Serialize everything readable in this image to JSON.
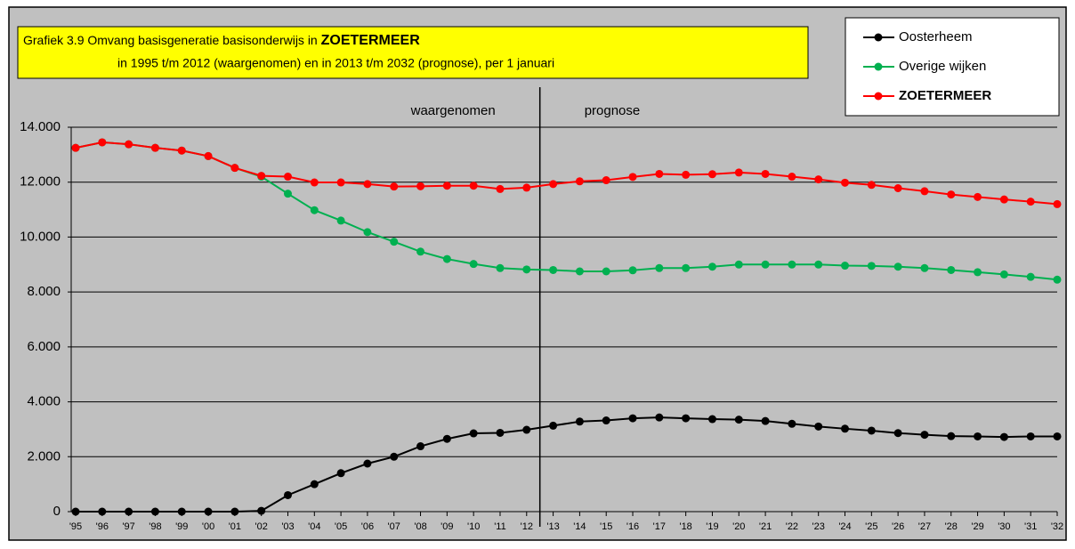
{
  "chart_data": {
    "type": "line",
    "title": "Grafiek 3.9  Omvang basisgeneratie basisonderwijs in",
    "title_emphasis": "ZOETERMEER",
    "subtitle": "in 1995 t/m 2012 (waargenomen) en in 2013 t/m 2032 (prognose), per 1 januari",
    "annotations": [
      "waargenomen",
      "prognose"
    ],
    "categories": [
      "'95",
      "'96",
      "'97",
      "'98",
      "'99",
      "'00",
      "'01",
      "'02",
      "'03",
      "'04",
      "'05",
      "'06",
      "'07",
      "'08",
      "'09",
      "'10",
      "'11",
      "'12",
      "'13",
      "'14",
      "'15",
      "'16",
      "'17",
      "'18",
      "'19",
      "'20",
      "'21",
      "'22",
      "'23",
      "'24",
      "'25",
      "'26",
      "'27",
      "'28",
      "'29",
      "'30",
      "'31",
      "'32"
    ],
    "series": [
      {
        "name": "Oosterheem",
        "color": "#000000",
        "values": [
          0,
          0,
          0,
          0,
          0,
          0,
          0,
          30,
          600,
          1000,
          1400,
          1750,
          2000,
          2380,
          2650,
          2850,
          2870,
          2980,
          3130,
          3280,
          3320,
          3400,
          3430,
          3400,
          3370,
          3350,
          3300,
          3200,
          3100,
          3020,
          2950,
          2860,
          2800,
          2750,
          2740,
          2720,
          2740,
          2740
        ]
      },
      {
        "name": "Overige wijken",
        "color": "#00b050",
        "values": [
          13250,
          13450,
          13380,
          13250,
          13150,
          12950,
          12520,
          12200,
          11580,
          10980,
          10600,
          10180,
          9830,
          9470,
          9200,
          9020,
          8870,
          8820,
          8800,
          8750,
          8750,
          8790,
          8870,
          8870,
          8920,
          9000,
          9000,
          9000,
          9000,
          8960,
          8950,
          8920,
          8870,
          8800,
          8720,
          8640,
          8550,
          8450
        ]
      },
      {
        "name": "ZOETERMEER",
        "color": "#ff0000",
        "values": [
          13250,
          13450,
          13380,
          13250,
          13150,
          12950,
          12520,
          12230,
          12200,
          11990,
          11990,
          11930,
          11840,
          11850,
          11870,
          11870,
          11750,
          11800,
          11930,
          12030,
          12070,
          12190,
          12300,
          12270,
          12290,
          12350,
          12300,
          12200,
          12100,
          11980,
          11900,
          11780,
          11670,
          11550,
          11460,
          11370,
          11290,
          11200
        ]
      }
    ],
    "ylim": [
      0,
      14000
    ],
    "yticks": [
      0,
      {
        "value": 2000,
        "label": "2.000"
      },
      {
        "value": 4000,
        "label": "4.000"
      },
      {
        "value": 6000,
        "label": "6.000"
      },
      {
        "value": 8000,
        "label": "8.000"
      },
      {
        "value": 10000,
        "label": "10.000"
      },
      {
        "value": 12000,
        "label": "12.000"
      },
      {
        "value": 14000,
        "label": "14.000"
      }
    ],
    "grid": true,
    "legend": "top-right"
  }
}
